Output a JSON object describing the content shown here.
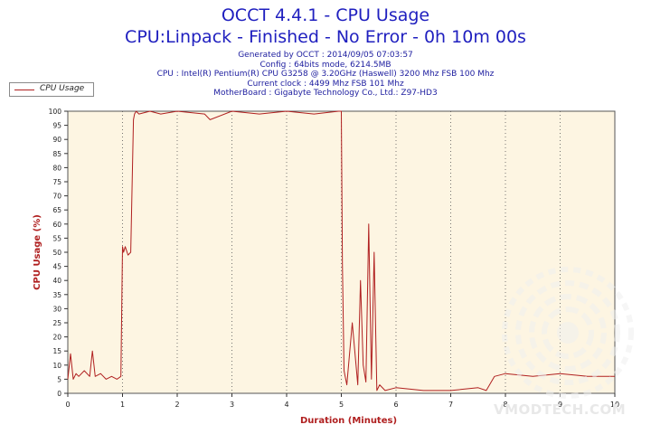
{
  "header": {
    "title": "OCCT 4.4.1 - CPU Usage",
    "subtitle": "CPU:Linpack - Finished - No Error - 0h 10m 00s",
    "info_lines": [
      "Generated by OCCT : 2014/09/05 07:03:57",
      "Config : 64bits mode, 6214.5MB",
      "CPU : Intel(R) Pentium(R) CPU G3258 @ 3.20GHz (Haswell) 3200 Mhz FSB 100 Mhz",
      "Current clock : 4499 Mhz FSB 101 Mhz",
      "MotherBoard : Gigabyte Technology Co., Ltd.: Z97-HD3"
    ]
  },
  "legend": {
    "label": "CPU Usage"
  },
  "watermark": {
    "text": "VMODTECH.COM"
  },
  "colors": {
    "title": "#1f1fbf",
    "line": "#b02020",
    "axis_label": "#b02020",
    "plot_background": "#fdf5e2",
    "watermark": "#e8e8e8"
  },
  "chart_data": {
    "type": "line",
    "xlabel": "Duration (Minutes)",
    "ylabel": "CPU Usage (%)",
    "xlim": [
      0,
      10
    ],
    "ylim": [
      0,
      100
    ],
    "x_ticks": [
      "0",
      "1",
      "2",
      "3",
      "4",
      "5",
      "6",
      "7",
      "8",
      "9",
      "10"
    ],
    "y_ticks": [
      "0",
      "5",
      "10",
      "15",
      "20",
      "25",
      "30",
      "35",
      "40",
      "45",
      "50",
      "55",
      "60",
      "65",
      "70",
      "75",
      "80",
      "85",
      "90",
      "95",
      "100"
    ],
    "grid": true,
    "legend_position": "top-left",
    "series": [
      {
        "name": "CPU Usage",
        "x": [
          0,
          0.05,
          0.1,
          0.15,
          0.2,
          0.3,
          0.4,
          0.45,
          0.5,
          0.6,
          0.7,
          0.8,
          0.9,
          0.97,
          1.0,
          1.02,
          1.05,
          1.1,
          1.15,
          1.2,
          1.22,
          1.25,
          1.3,
          1.5,
          1.7,
          2.0,
          2.5,
          2.6,
          3.0,
          3.5,
          4.0,
          4.5,
          4.95,
          5.0,
          5.02,
          5.05,
          5.1,
          5.2,
          5.3,
          5.35,
          5.4,
          5.45,
          5.5,
          5.55,
          5.6,
          5.65,
          5.7,
          5.8,
          6.0,
          6.5,
          7.0,
          7.5,
          7.65,
          7.8,
          8.0,
          8.5,
          9.0,
          9.5,
          10.0
        ],
        "y": [
          5,
          14,
          5,
          7,
          6,
          8,
          6,
          15,
          6,
          7,
          5,
          6,
          5,
          6,
          52,
          50,
          52,
          49,
          50,
          97,
          99,
          100,
          99,
          100,
          99,
          100,
          99,
          97,
          100,
          99,
          100,
          99,
          100,
          100,
          46,
          8,
          3,
          25,
          3,
          40,
          10,
          4,
          60,
          5,
          50,
          1,
          3,
          1,
          2,
          1,
          1,
          2,
          1,
          6,
          7,
          6,
          7,
          6,
          6
        ]
      }
    ]
  }
}
